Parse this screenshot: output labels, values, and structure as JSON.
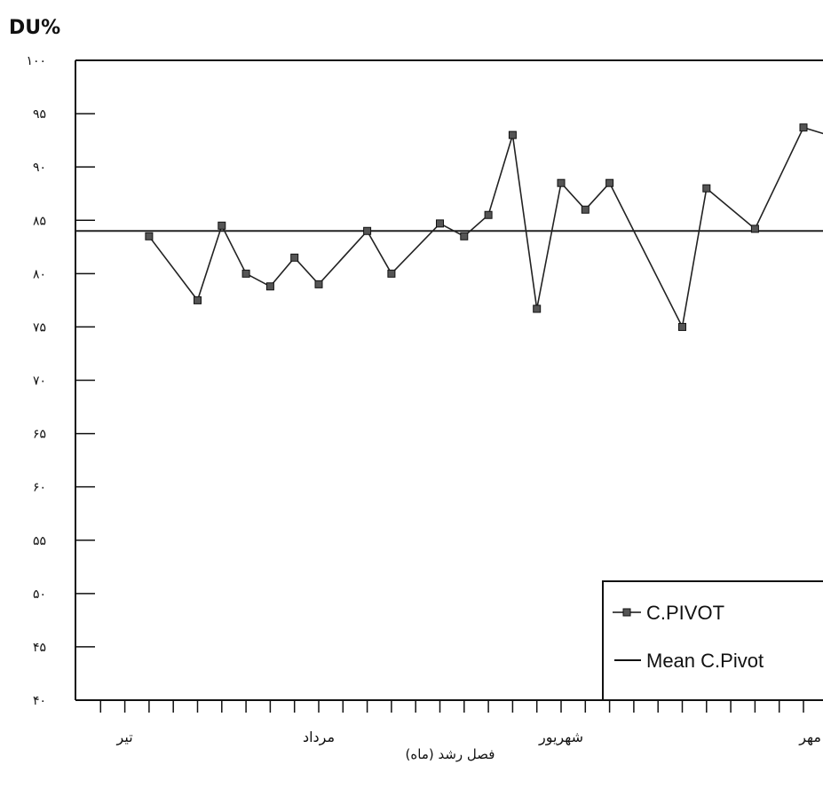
{
  "chart_data": {
    "type": "line",
    "ylabel": "DU%",
    "xlabel": "فصل رشد (ماه)",
    "ylim": [
      40,
      100
    ],
    "y_ticks": [
      {
        "value": 100,
        "label": "۱۰۰"
      },
      {
        "value": 95,
        "label": "۹۵"
      },
      {
        "value": 90,
        "label": "۹۰"
      },
      {
        "value": 85,
        "label": "۸۵"
      },
      {
        "value": 80,
        "label": "۸۰"
      },
      {
        "value": 75,
        "label": "۷۵"
      },
      {
        "value": 70,
        "label": "۷۰"
      },
      {
        "value": 65,
        "label": "۶۵"
      },
      {
        "value": 60,
        "label": "۶۰"
      },
      {
        "value": 55,
        "label": "۵۵"
      },
      {
        "value": 50,
        "label": "۵۰"
      },
      {
        "value": 45,
        "label": "۴۵"
      },
      {
        "value": 40,
        "label": "۴۰"
      }
    ],
    "x_tick_count": 31,
    "month_labels": [
      {
        "label": "تیر",
        "tick": 2
      },
      {
        "label": "مرداد",
        "tick": 10
      },
      {
        "label": "شهریور",
        "tick": 20
      },
      {
        "label": "مهر",
        "tick": 30
      }
    ],
    "grid": false,
    "legend_position": "bottom-right",
    "series": [
      {
        "name": "C.PIVOT",
        "marker": "square",
        "color": "#222222",
        "points": [
          {
            "x": 3,
            "y": 83.5
          },
          {
            "x": 5,
            "y": 77.5
          },
          {
            "x": 6,
            "y": 84.5
          },
          {
            "x": 7,
            "y": 80
          },
          {
            "x": 8,
            "y": 78.8
          },
          {
            "x": 9,
            "y": 81.5
          },
          {
            "x": 10,
            "y": 79
          },
          {
            "x": 12,
            "y": 84
          },
          {
            "x": 13,
            "y": 80
          },
          {
            "x": 15,
            "y": 84.7
          },
          {
            "x": 16,
            "y": 83.5
          },
          {
            "x": 17,
            "y": 85.5
          },
          {
            "x": 18,
            "y": 93
          },
          {
            "x": 19,
            "y": 76.7
          },
          {
            "x": 20,
            "y": 88.5
          },
          {
            "x": 21,
            "y": 86
          },
          {
            "x": 22,
            "y": 88.5
          },
          {
            "x": 25,
            "y": 75
          },
          {
            "x": 26,
            "y": 88
          },
          {
            "x": 28,
            "y": 84.2
          },
          {
            "x": 30,
            "y": 93.7
          },
          {
            "x": 31,
            "y": 93
          }
        ]
      },
      {
        "name": "Mean C.Pivot",
        "color": "#222222",
        "y_constant": 84
      }
    ]
  }
}
